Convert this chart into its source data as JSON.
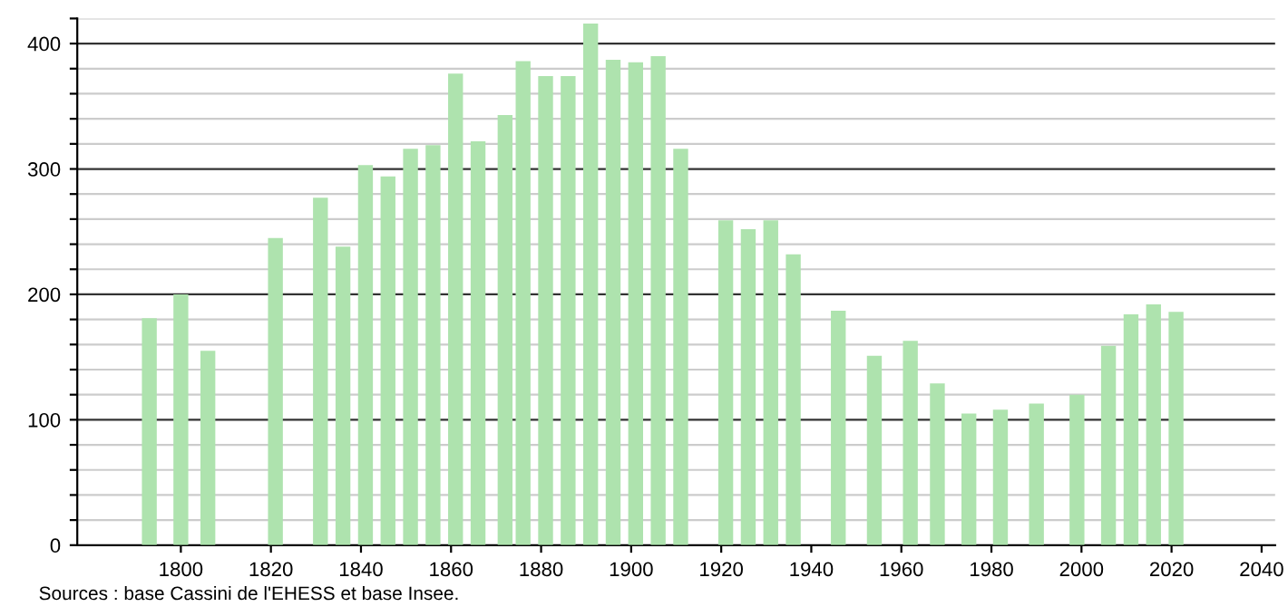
{
  "chart_data": {
    "type": "bar",
    "x": [
      1793,
      1800,
      1806,
      1821,
      1831,
      1836,
      1841,
      1846,
      1851,
      1856,
      1861,
      1866,
      1872,
      1876,
      1881,
      1886,
      1891,
      1896,
      1901,
      1906,
      1911,
      1921,
      1926,
      1931,
      1936,
      1946,
      1954,
      1962,
      1968,
      1975,
      1982,
      1990,
      1999,
      2006,
      2011,
      2016,
      2021
    ],
    "values": [
      181,
      200,
      155,
      245,
      277,
      238,
      303,
      294,
      316,
      319,
      376,
      322,
      343,
      386,
      374,
      374,
      416,
      387,
      385,
      390,
      316,
      259,
      252,
      259,
      232,
      187,
      151,
      163,
      129,
      105,
      108,
      113,
      120,
      159,
      184,
      192,
      186
    ],
    "color": "#aee3ae",
    "xlim": [
      1777,
      2043
    ],
    "xticks": [
      1800,
      1820,
      1840,
      1860,
      1880,
      1900,
      1920,
      1940,
      1960,
      1980,
      2000,
      2020,
      2040
    ],
    "ylim": [
      0,
      420
    ],
    "yticks": [
      0,
      {
        "value": 20,
        "label": null
      },
      {
        "value": 40,
        "label": null
      },
      {
        "value": 60,
        "label": null
      },
      {
        "value": 80,
        "label": null
      },
      100,
      {
        "value": 120,
        "label": null
      },
      {
        "value": 140,
        "label": null
      },
      {
        "value": 160,
        "label": null
      },
      {
        "value": 180,
        "label": null
      },
      200,
      {
        "value": 220,
        "label": null
      },
      {
        "value": 240,
        "label": null
      },
      {
        "value": 260,
        "label": null
      },
      {
        "value": 280,
        "label": null
      },
      300,
      {
        "value": 320,
        "label": null
      },
      {
        "value": 340,
        "label": null
      },
      {
        "value": 360,
        "label": null
      },
      {
        "value": 380,
        "label": null
      },
      400,
      {
        "value": 420,
        "label": null
      }
    ],
    "grid": "y",
    "annotations": [
      "Sources : base Cassini de l'EHESS et base Insee."
    ]
  }
}
